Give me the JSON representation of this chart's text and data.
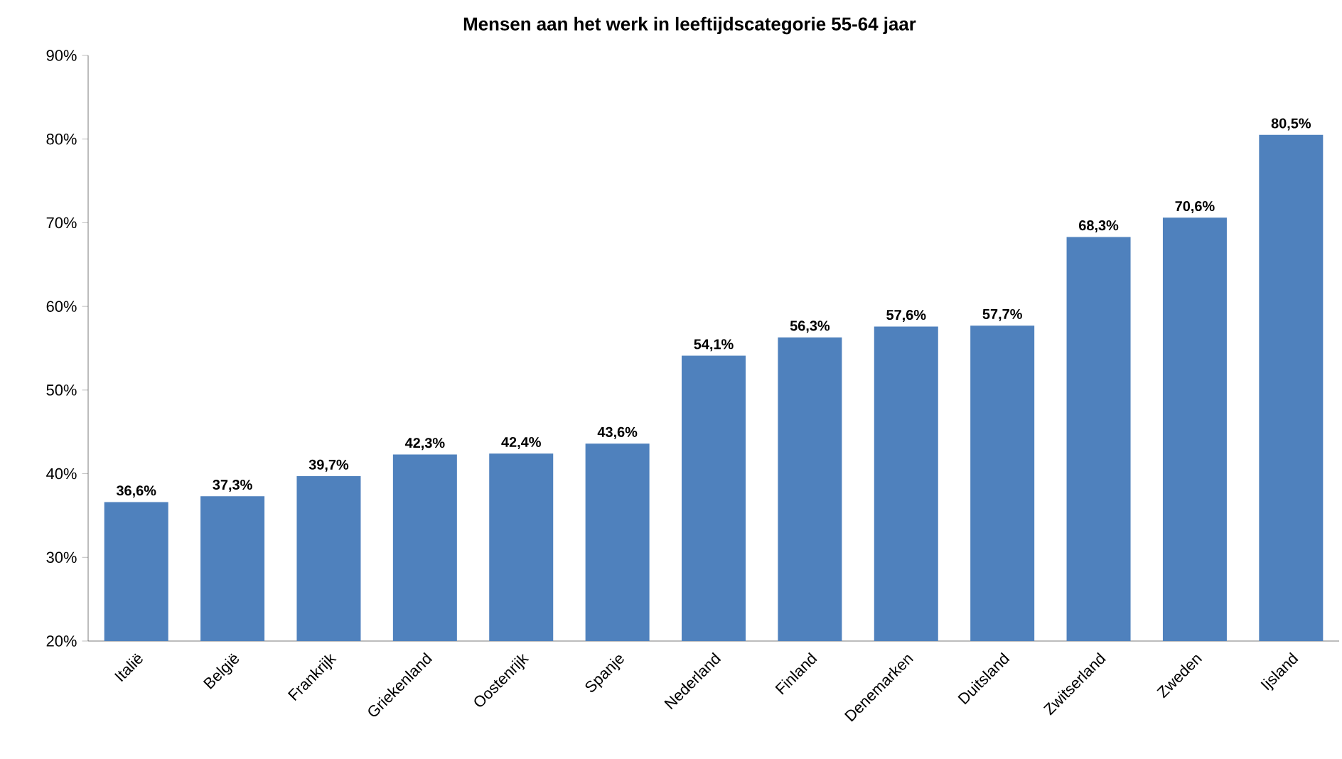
{
  "chart_data": {
    "type": "bar",
    "title": "Mensen aan het werk in leeftijdscategorie 55-64 jaar",
    "categories": [
      "Italië",
      "België",
      "Frankrijk",
      "Griekenland",
      "Oostenrijk",
      "Spanje",
      "Nederland",
      "Finland",
      "Denemarken",
      "Duitsland",
      "Zwitserland",
      "Zweden",
      "Ijsland"
    ],
    "values": [
      36.6,
      37.3,
      39.7,
      42.3,
      42.4,
      43.6,
      54.1,
      56.3,
      57.6,
      57.7,
      68.3,
      70.6,
      80.5
    ],
    "value_labels": [
      "36,6%",
      "37,3%",
      "39,7%",
      "42,3%",
      "42,4%",
      "43,6%",
      "54,1%",
      "56,3%",
      "57,6%",
      "57,7%",
      "68,3%",
      "70,6%",
      "80,5%"
    ],
    "color": "#4f81bd",
    "ylim": [
      20,
      90
    ],
    "yticks": [
      {
        "value": 20,
        "label": "20%"
      },
      {
        "value": 30,
        "label": "30%"
      },
      {
        "value": 40,
        "label": "40%"
      },
      {
        "value": 50,
        "label": "50%"
      },
      {
        "value": 60,
        "label": "60%"
      },
      {
        "value": 70,
        "label": "70%"
      },
      {
        "value": 80,
        "label": "80%"
      },
      {
        "value": 90,
        "label": "90%"
      }
    ],
    "grid": false
  }
}
